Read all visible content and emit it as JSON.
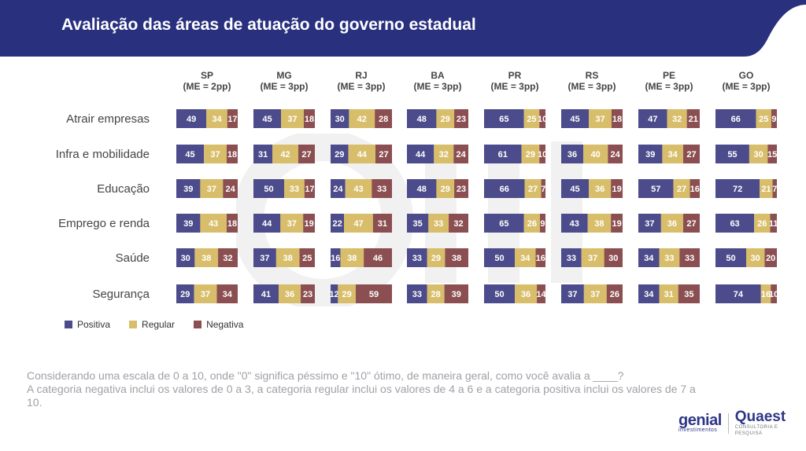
{
  "header": {
    "title": "Avaliação das áreas de atuação do governo estadual"
  },
  "colors": {
    "positiva": "#4c4b8b",
    "regular": "#d8be6a",
    "negativa": "#8b4f52",
    "header_bg": "#29307e"
  },
  "chart_data": {
    "type": "bar",
    "stacked": true,
    "orientation": "horizontal",
    "states": [
      {
        "name": "SP",
        "me": "(ME = 2pp)"
      },
      {
        "name": "MG",
        "me": "(ME = 3pp)"
      },
      {
        "name": "RJ",
        "me": "(ME = 3pp)"
      },
      {
        "name": "BA",
        "me": "(ME = 3pp)"
      },
      {
        "name": "PR",
        "me": "(ME = 3pp)"
      },
      {
        "name": "RS",
        "me": "(ME = 3pp)"
      },
      {
        "name": "PE",
        "me": "(ME = 3pp)"
      },
      {
        "name": "GO",
        "me": "(ME = 3pp)"
      }
    ],
    "categories": [
      "Atrair empresas",
      "Infra e mobilidade",
      "Educação",
      "Emprego e renda",
      "Saúde",
      "Segurança"
    ],
    "legend": [
      "Positiva",
      "Regular",
      "Negativa"
    ],
    "legend_placement": "bottom-left",
    "values": [
      [
        [
          49,
          34,
          17
        ],
        [
          45,
          37,
          18
        ],
        [
          30,
          42,
          28
        ],
        [
          48,
          29,
          23
        ],
        [
          65,
          25,
          10
        ],
        [
          45,
          37,
          18
        ],
        [
          47,
          32,
          21
        ],
        [
          66,
          25,
          9
        ]
      ],
      [
        [
          45,
          37,
          18
        ],
        [
          31,
          42,
          27
        ],
        [
          29,
          44,
          27
        ],
        [
          44,
          32,
          24
        ],
        [
          61,
          29,
          10
        ],
        [
          36,
          40,
          24
        ],
        [
          39,
          34,
          27
        ],
        [
          55,
          30,
          15
        ]
      ],
      [
        [
          39,
          37,
          24
        ],
        [
          50,
          33,
          17
        ],
        [
          24,
          43,
          33
        ],
        [
          48,
          29,
          23
        ],
        [
          66,
          27,
          7
        ],
        [
          45,
          36,
          19
        ],
        [
          57,
          27,
          16
        ],
        [
          72,
          21,
          7
        ]
      ],
      [
        [
          39,
          43,
          18
        ],
        [
          44,
          37,
          19
        ],
        [
          22,
          47,
          31
        ],
        [
          35,
          33,
          32
        ],
        [
          65,
          26,
          9
        ],
        [
          43,
          38,
          19
        ],
        [
          37,
          36,
          27
        ],
        [
          63,
          26,
          11
        ]
      ],
      [
        [
          30,
          38,
          32
        ],
        [
          37,
          38,
          25
        ],
        [
          16,
          38,
          46
        ],
        [
          33,
          29,
          38
        ],
        [
          50,
          34,
          16
        ],
        [
          33,
          37,
          30
        ],
        [
          34,
          33,
          33
        ],
        [
          50,
          30,
          20
        ]
      ],
      [
        [
          29,
          37,
          34
        ],
        [
          41,
          36,
          23
        ],
        [
          12,
          29,
          59
        ],
        [
          33,
          28,
          39
        ],
        [
          50,
          36,
          14
        ],
        [
          37,
          37,
          26
        ],
        [
          34,
          31,
          35
        ],
        [
          74,
          16,
          10
        ]
      ]
    ]
  },
  "footnote": {
    "line1": "Considerando uma escala de 0 a 10, onde \"0\" significa péssimo e \"10\" ótimo, de maneira geral, como você avalia a ____?",
    "line2": "A categoria negativa inclui os valores de 0 a 3, a categoria regular inclui os valores de 4 a 6 e a categoria positiva inclui os valores de 7 a 10."
  },
  "logos": {
    "genial": "genial",
    "genial_sub": "investimentos",
    "quaest": "Quaest",
    "quaest_sub": "CONSULTORIA E PESQUISA"
  }
}
